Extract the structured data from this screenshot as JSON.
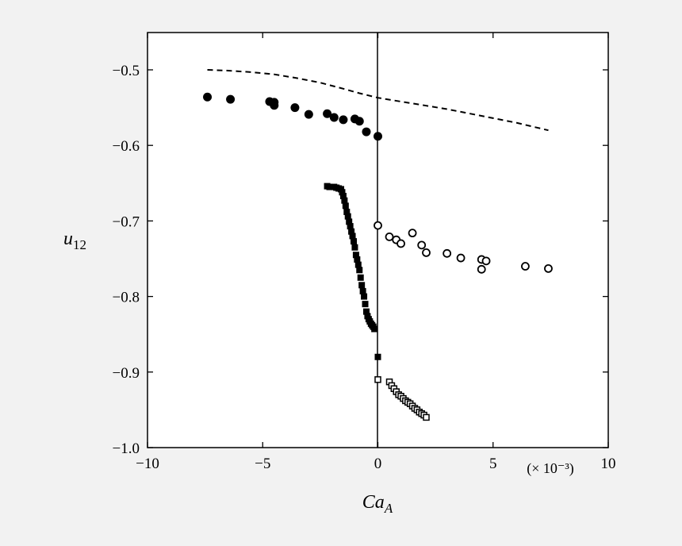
{
  "chart_data": {
    "type": "scatter",
    "title": "",
    "xlabel": "Ca",
    "xlabel_sub": "A",
    "ylabel": "u",
    "ylabel_sub": "12",
    "x_scale_note": "(× 10⁻³)",
    "xlim": [
      -10,
      10
    ],
    "ylim": [
      -1.0,
      -0.45
    ],
    "x_ticks": [
      -10,
      -5,
      0,
      5,
      10
    ],
    "x_tick_labels": [
      "−10",
      "−5",
      "0",
      "5",
      "10"
    ],
    "y_ticks": [
      -1.0,
      -0.9,
      -0.8,
      -0.7,
      -0.6,
      -0.5
    ],
    "y_tick_labels": [
      "−1.0",
      "−0.9",
      "−0.8",
      "−0.7",
      "−0.6",
      "−0.5"
    ],
    "grid": false,
    "colors": {
      "background": "#f2f2f2",
      "plot": "#ffffff",
      "ink": "#000000"
    },
    "series": [
      {
        "marker": "dashed-line",
        "x": [
          -7.4,
          -6.5,
          -5.5,
          -4.5,
          -3.5,
          -2.5,
          -1.5,
          -0.8,
          0,
          1,
          2,
          3,
          4,
          5,
          6,
          7.4
        ],
        "y": [
          -0.5,
          -0.501,
          -0.503,
          -0.506,
          -0.511,
          -0.517,
          -0.525,
          -0.531,
          -0.537,
          -0.542,
          -0.547,
          -0.552,
          -0.558,
          -0.564,
          -0.57,
          -0.58
        ]
      },
      {
        "marker": "filled-circle",
        "x": [
          -7.4,
          -6.4,
          -4.7,
          -4.5,
          -4.5,
          -3.6,
          -3.0,
          -2.2,
          -1.9,
          -1.5,
          -1.0,
          -0.8,
          -0.5,
          0.0
        ],
        "y": [
          -0.536,
          -0.539,
          -0.542,
          -0.543,
          -0.547,
          -0.55,
          -0.559,
          -0.558,
          -0.563,
          -0.566,
          -0.565,
          -0.568,
          -0.582,
          -0.588
        ]
      },
      {
        "marker": "open-circle",
        "x": [
          0.0,
          0.5,
          0.8,
          1.0,
          1.5,
          1.9,
          2.1,
          3.0,
          3.6,
          4.5,
          4.5,
          4.7,
          6.4,
          7.4
        ],
        "y": [
          -0.706,
          -0.721,
          -0.725,
          -0.73,
          -0.716,
          -0.732,
          -0.742,
          -0.743,
          -0.749,
          -0.751,
          -0.764,
          -0.753,
          -0.76,
          -0.763
        ]
      },
      {
        "marker": "filled-square",
        "x": [
          -2.2,
          -2.1,
          -1.9,
          -1.8,
          -1.7,
          -1.6,
          -1.55,
          -1.5,
          -1.45,
          -1.4,
          -1.35,
          -1.3,
          -1.25,
          -1.2,
          -1.15,
          -1.1,
          -1.05,
          -1.0,
          -0.95,
          -0.9,
          -0.85,
          -0.8,
          -0.75,
          -0.7,
          -0.65,
          -0.6,
          -0.55,
          -0.5,
          -0.45,
          -0.4,
          -0.35,
          -0.3,
          -0.25,
          -0.2,
          -0.15,
          0.0
        ],
        "y": [
          -0.654,
          -0.655,
          -0.655,
          -0.656,
          -0.657,
          -0.658,
          -0.662,
          -0.667,
          -0.673,
          -0.68,
          -0.688,
          -0.694,
          -0.701,
          -0.707,
          -0.714,
          -0.72,
          -0.727,
          -0.735,
          -0.745,
          -0.751,
          -0.758,
          -0.765,
          -0.775,
          -0.785,
          -0.793,
          -0.8,
          -0.81,
          -0.82,
          -0.826,
          -0.83,
          -0.833,
          -0.836,
          -0.838,
          -0.84,
          -0.843,
          -0.88
        ]
      },
      {
        "marker": "open-square",
        "x": [
          0.0,
          0.5,
          0.6,
          0.7,
          0.8,
          0.9,
          1.0,
          1.1,
          1.2,
          1.3,
          1.4,
          1.5,
          1.6,
          1.7,
          1.8,
          1.9,
          2.0,
          2.1
        ],
        "y": [
          -0.91,
          -0.913,
          -0.918,
          -0.922,
          -0.926,
          -0.93,
          -0.932,
          -0.935,
          -0.938,
          -0.94,
          -0.942,
          -0.945,
          -0.948,
          -0.95,
          -0.953,
          -0.955,
          -0.957,
          -0.96
        ]
      }
    ]
  }
}
